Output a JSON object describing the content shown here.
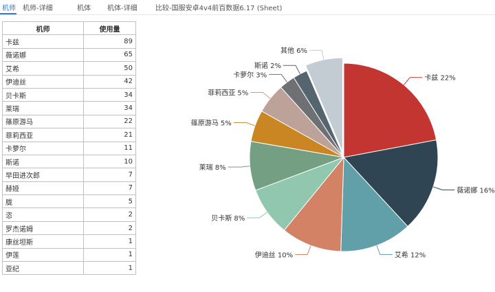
{
  "tabs": [
    "机师",
    "机师-详细",
    "机体",
    "机体-详细",
    "比较-国服安卓4v4前百数据6.17 (Sheet)"
  ],
  "active_tab": 0,
  "table": {
    "headers": [
      "机师",
      "使用量"
    ],
    "rows": [
      [
        "卡兹",
        "89"
      ],
      [
        "薇诺娜",
        "65"
      ],
      [
        "艾希",
        "50"
      ],
      [
        "伊迪丝",
        "42"
      ],
      [
        "贝卡斯",
        "34"
      ],
      [
        "莱瑞",
        "34"
      ],
      [
        "篠原游马",
        "22"
      ],
      [
        "菲莉西亚",
        "21"
      ],
      [
        "卡萝尔",
        "11"
      ],
      [
        "斯诺",
        "10"
      ],
      [
        "早田进次郎",
        "7"
      ],
      [
        "赫娅",
        "7"
      ],
      [
        "胧",
        "5"
      ],
      [
        "恣",
        "2"
      ],
      [
        "罗杰诺姆",
        "2"
      ],
      [
        "康丝坦斯",
        "1"
      ],
      [
        "伊莲",
        "1"
      ],
      [
        "亚纪",
        "1"
      ]
    ]
  },
  "chart_data": {
    "type": "pie",
    "title": "",
    "slices": [
      {
        "label": "卡兹 22%",
        "value": 89,
        "color": "#c23531"
      },
      {
        "label": "薇诺娜 16%",
        "value": 65,
        "color": "#2f4554"
      },
      {
        "label": "艾希 12%",
        "value": 50,
        "color": "#61a0a8"
      },
      {
        "label": "伊迪丝 10%",
        "value": 42,
        "color": "#d48265"
      },
      {
        "label": "贝卡斯 8%",
        "value": 34,
        "color": "#91c7ae"
      },
      {
        "label": "莱瑞 8%",
        "value": 34,
        "color": "#749f83"
      },
      {
        "label": "篠原游马 5%",
        "value": 22,
        "color": "#ca8622"
      },
      {
        "label": "菲莉西亚 5%",
        "value": 21,
        "color": "#bda29a"
      },
      {
        "label": "卡萝尔 3%",
        "value": 11,
        "color": "#6e7074"
      },
      {
        "label": "斯诺 2%",
        "value": 10,
        "color": "#546570"
      },
      {
        "label": "其他 6%",
        "value": 26,
        "color": "#c4ccd3"
      }
    ],
    "exploded": "其他 6%"
  }
}
